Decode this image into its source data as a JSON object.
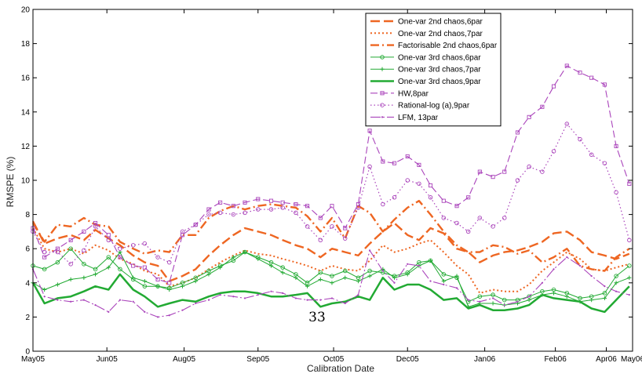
{
  "chart_data": {
    "type": "line",
    "xlabel": "Calibration Date",
    "ylabel": "RMSPE (%)",
    "ylim": [
      0,
      20
    ],
    "yticks": [
      0,
      2,
      4,
      6,
      8,
      10,
      12,
      14,
      16,
      18,
      20
    ],
    "xlim": [
      "2005-05-01",
      "2006-05-01"
    ],
    "xticks": [
      {
        "date": "2005-05-01",
        "label": "May05"
      },
      {
        "date": "2005-06-15",
        "label": "Jun05"
      },
      {
        "date": "2005-08-01",
        "label": "Aug05"
      },
      {
        "date": "2005-09-15",
        "label": "Sep05"
      },
      {
        "date": "2005-10-31",
        "label": "Oct05"
      },
      {
        "date": "2005-12-15",
        "label": "Dec05"
      },
      {
        "date": "2006-01-31",
        "label": "Jan06"
      },
      {
        "date": "2006-03-15",
        "label": "Feb06"
      },
      {
        "date": "2006-04-15",
        "label": "Apr06"
      },
      {
        "date": "2006-05-01",
        "label": "May06"
      }
    ],
    "x": [
      "2005-05-01",
      "2005-05-08",
      "2005-05-16",
      "2005-05-24",
      "2005-06-01",
      "2005-06-08",
      "2005-06-16",
      "2005-06-23",
      "2005-07-01",
      "2005-07-08",
      "2005-07-16",
      "2005-07-23",
      "2005-07-31",
      "2005-08-08",
      "2005-08-16",
      "2005-08-23",
      "2005-08-31",
      "2005-09-07",
      "2005-09-15",
      "2005-09-23",
      "2005-09-30",
      "2005-10-08",
      "2005-10-15",
      "2005-10-23",
      "2005-10-30",
      "2005-11-07",
      "2005-11-15",
      "2005-11-22",
      "2005-11-30",
      "2005-12-07",
      "2005-12-15",
      "2005-12-22",
      "2005-12-29",
      "2006-01-06",
      "2006-01-14",
      "2006-01-21",
      "2006-01-28",
      "2006-02-05",
      "2006-02-12",
      "2006-02-20",
      "2006-02-27",
      "2006-03-07",
      "2006-03-14",
      "2006-03-22",
      "2006-03-30",
      "2006-04-06",
      "2006-04-14",
      "2006-04-21",
      "2006-04-29"
    ],
    "legend_position": "top-right",
    "grid": false,
    "series": [
      {
        "name": "One-var 2nd chaos,6par",
        "color": "#ee6622",
        "dash": "12,5",
        "width": 2.4,
        "marker": "none",
        "values": [
          7.6,
          6.3,
          6.6,
          6.8,
          6.5,
          7.1,
          6.6,
          6.2,
          5.6,
          5.2,
          5.0,
          4.1,
          4.4,
          4.8,
          5.6,
          6.2,
          6.8,
          7.2,
          7.0,
          6.8,
          6.5,
          6.2,
          6.0,
          5.5,
          6.0,
          5.8,
          5.6,
          6.3,
          7.0,
          7.5,
          6.8,
          6.5,
          7.2,
          6.9,
          6.0,
          5.8,
          5.2,
          5.6,
          5.8,
          5.9,
          6.1,
          6.4,
          6.9,
          7.0,
          6.5,
          5.8,
          5.6,
          5.4,
          5.7
        ]
      },
      {
        "name": "One-var 2nd chaos,7par",
        "color": "#ee6622",
        "dash": "2,3",
        "width": 2.0,
        "marker": "none",
        "values": [
          7.2,
          6.0,
          5.8,
          6.0,
          5.7,
          6.2,
          5.9,
          5.4,
          5.1,
          4.7,
          4.5,
          3.8,
          4.0,
          4.3,
          4.8,
          5.2,
          5.6,
          5.9,
          5.7,
          5.6,
          5.4,
          5.2,
          5.0,
          4.7,
          5.0,
          4.8,
          4.7,
          5.3,
          6.2,
          5.8,
          6.0,
          6.3,
          6.5,
          5.8,
          5.0,
          4.5,
          3.4,
          3.6,
          3.5,
          3.5,
          3.9,
          4.7,
          5.2,
          5.8,
          5.4,
          4.8,
          4.7,
          4.9,
          5.1
        ]
      },
      {
        "name": "Factorisable 2nd chaos,6par",
        "color": "#ee6622",
        "dash": "11,4,2,4",
        "width": 2.4,
        "marker": "none",
        "values": [
          7.5,
          6.4,
          7.4,
          7.3,
          7.8,
          7.4,
          7.3,
          6.4,
          6.0,
          5.7,
          5.9,
          5.8,
          6.8,
          6.8,
          7.8,
          8.2,
          8.5,
          8.3,
          8.5,
          8.6,
          8.5,
          8.4,
          7.9,
          7.0,
          7.8,
          6.6,
          8.5,
          8.1,
          7.0,
          7.7,
          8.4,
          8.8,
          8.0,
          7.0,
          6.2,
          5.8,
          5.8,
          6.2,
          6.1,
          5.7,
          5.9,
          5.2,
          5.5,
          6.0,
          5.0,
          4.8,
          4.7,
          5.5,
          6.0
        ]
      },
      {
        "name": "One-var 3rd chaos,6par",
        "color": "#22aa33",
        "dash": "",
        "width": 1.0,
        "marker": "circle",
        "values": [
          5.0,
          4.8,
          5.2,
          6.0,
          5.1,
          4.8,
          5.5,
          4.8,
          4.2,
          3.8,
          3.8,
          3.7,
          4.0,
          4.3,
          4.7,
          5.0,
          5.3,
          5.8,
          5.5,
          5.2,
          4.9,
          4.5,
          4.0,
          4.6,
          4.4,
          4.7,
          4.3,
          4.7,
          4.6,
          4.4,
          4.6,
          5.2,
          5.3,
          4.5,
          4.3,
          2.9,
          3.2,
          3.3,
          3.0,
          3.0,
          3.2,
          3.5,
          3.6,
          3.4,
          3.1,
          3.2,
          3.4,
          4.4,
          5.0
        ]
      },
      {
        "name": "One-var 3rd chaos,7par",
        "color": "#22aa33",
        "dash": "",
        "width": 1.0,
        "marker": "plus",
        "values": [
          4.0,
          3.6,
          3.9,
          4.2,
          4.3,
          4.5,
          4.9,
          5.8,
          4.3,
          4.1,
          3.8,
          3.6,
          3.8,
          4.1,
          4.5,
          4.9,
          5.5,
          5.8,
          5.4,
          5.0,
          4.6,
          4.3,
          3.8,
          4.2,
          4.0,
          4.3,
          4.1,
          4.4,
          4.8,
          4.3,
          4.5,
          5.0,
          5.3,
          4.1,
          4.4,
          2.6,
          2.8,
          2.8,
          2.7,
          2.8,
          3.0,
          3.3,
          3.4,
          3.2,
          2.9,
          3.0,
          3.1,
          4.0,
          4.3
        ]
      },
      {
        "name": "One-var 3rd chaos,9par",
        "color": "#22aa33",
        "dash": "",
        "width": 2.5,
        "marker": "none",
        "values": [
          4.0,
          2.8,
          3.1,
          3.2,
          3.5,
          3.8,
          3.6,
          4.5,
          3.6,
          3.2,
          2.6,
          2.8,
          3.0,
          2.9,
          3.2,
          3.4,
          3.5,
          3.5,
          3.4,
          3.2,
          3.2,
          3.3,
          3.4,
          2.6,
          2.8,
          2.9,
          3.2,
          3.0,
          4.3,
          3.6,
          3.9,
          3.9,
          3.6,
          3.0,
          3.1,
          2.5,
          2.7,
          2.4,
          2.4,
          2.5,
          2.7,
          3.3,
          3.1,
          3.0,
          2.9,
          2.5,
          2.3,
          3.0,
          3.8
        ]
      },
      {
        "name": "HW,8par",
        "color": "#aa44bb",
        "dash": "9,4",
        "width": 1.1,
        "marker": "square",
        "values": [
          7.2,
          5.5,
          6.0,
          6.5,
          7.0,
          7.5,
          6.8,
          5.5,
          5.0,
          4.9,
          4.2,
          4.0,
          6.8,
          7.4,
          8.3,
          8.7,
          8.5,
          8.7,
          8.9,
          8.8,
          8.7,
          8.6,
          8.5,
          7.8,
          8.5,
          7.2,
          8.6,
          12.9,
          11.1,
          11.0,
          11.4,
          10.9,
          9.7,
          8.8,
          8.5,
          9.0,
          10.5,
          10.2,
          10.5,
          12.8,
          13.7,
          14.3,
          15.5,
          16.7,
          16.3,
          16.0,
          15.6,
          12.0,
          9.8
        ]
      },
      {
        "name": "Rational-log (a),9par",
        "color": "#aa44bb",
        "dash": "1.5,3",
        "width": 1.2,
        "marker": "circle",
        "values": [
          7.0,
          5.8,
          5.8,
          5.1,
          5.9,
          7.3,
          6.5,
          6.0,
          6.2,
          6.3,
          5.5,
          5.2,
          7.0,
          7.4,
          8.0,
          8.1,
          8.0,
          8.1,
          8.3,
          8.3,
          8.4,
          8.1,
          7.3,
          6.5,
          7.3,
          6.6,
          8.4,
          10.8,
          8.6,
          9.0,
          10.0,
          9.8,
          9.0,
          7.8,
          7.5,
          7.0,
          7.8,
          7.3,
          7.8,
          10.0,
          10.8,
          10.5,
          11.7,
          13.3,
          12.4,
          11.5,
          11.0,
          9.3,
          6.5
        ]
      },
      {
        "name": "LFM, 13par",
        "color": "#aa44bb",
        "dash": "13,3,2,3",
        "width": 1.1,
        "marker": "dot",
        "values": [
          4.8,
          3.2,
          3.0,
          2.9,
          3.0,
          2.7,
          2.3,
          3.0,
          2.9,
          2.3,
          2.0,
          2.1,
          2.4,
          2.8,
          3.0,
          3.3,
          3.2,
          3.1,
          3.3,
          3.5,
          3.4,
          3.1,
          3.0,
          3.0,
          3.1,
          2.8,
          3.3,
          5.9,
          4.7,
          4.0,
          5.1,
          5.0,
          4.1,
          3.9,
          3.7,
          3.0,
          2.9,
          3.1,
          2.7,
          2.9,
          3.2,
          4.0,
          4.8,
          5.5,
          5.0,
          4.4,
          3.8,
          3.5,
          3.3
        ]
      }
    ],
    "annotation": "33"
  }
}
